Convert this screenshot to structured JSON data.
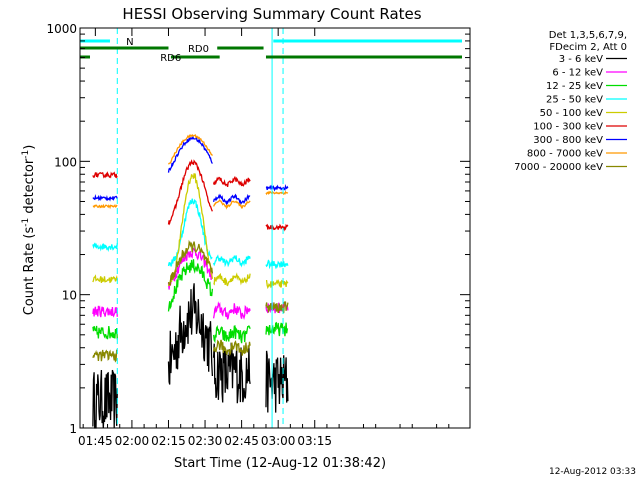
{
  "chart_data": {
    "type": "line",
    "title": "HESSI Observing Summary Count Rates",
    "xlabel": "Start Time (12-Aug-12 01:38:42)",
    "ylabel_main": "Count Rate (s",
    "ylabel_sup1": "-1",
    "ylabel_mid": " detector",
    "ylabel_sup2": "-1",
    "ylabel_end": ")",
    "timestamp": "12-Aug-2012 03:33",
    "y_scale": "log",
    "ylim": [
      1,
      1000
    ],
    "xlim_minutes": [
      38.7,
      198.7
    ],
    "x_ticks": [
      {
        "label": "01:45",
        "min": 45
      },
      {
        "label": "02:00",
        "min": 60
      },
      {
        "label": "02:15",
        "min": 75
      },
      {
        "label": "02:30",
        "min": 90
      },
      {
        "label": "02:45",
        "min": 105
      },
      {
        "label": "03:00",
        "min": 120
      },
      {
        "label": "03:15",
        "min": 135
      }
    ],
    "y_ticks": [
      {
        "label": "1",
        "value": 1
      },
      {
        "label": "10",
        "value": 10
      },
      {
        "label": "100",
        "value": 100
      },
      {
        "label": "1000",
        "value": 1000
      }
    ],
    "legend_header": [
      "Det 1,3,5,6,7,9,",
      "FDecim 2, Att 0"
    ],
    "series": [
      {
        "name": "3 - 6 keV",
        "color": "#000000"
      },
      {
        "name": "6 - 12 keV",
        "color": "#ff00ff"
      },
      {
        "name": "12 - 25 keV",
        "color": "#00dd00"
      },
      {
        "name": "25 - 50 keV",
        "color": "#00ffff"
      },
      {
        "name": "50 - 100 keV",
        "color": "#cccc00"
      },
      {
        "name": "100 - 300 keV",
        "color": "#dd0000"
      },
      {
        "name": "300 - 800 keV",
        "color": "#0000ff"
      },
      {
        "name": "800 - 7000 keV",
        "color": "#ff9900"
      },
      {
        "name": "7000 - 20000 keV",
        "color": "#888800"
      }
    ],
    "annotations": {
      "night_label": "N",
      "rd0_label": "RD0",
      "rd6_label": "RD6"
    }
  }
}
